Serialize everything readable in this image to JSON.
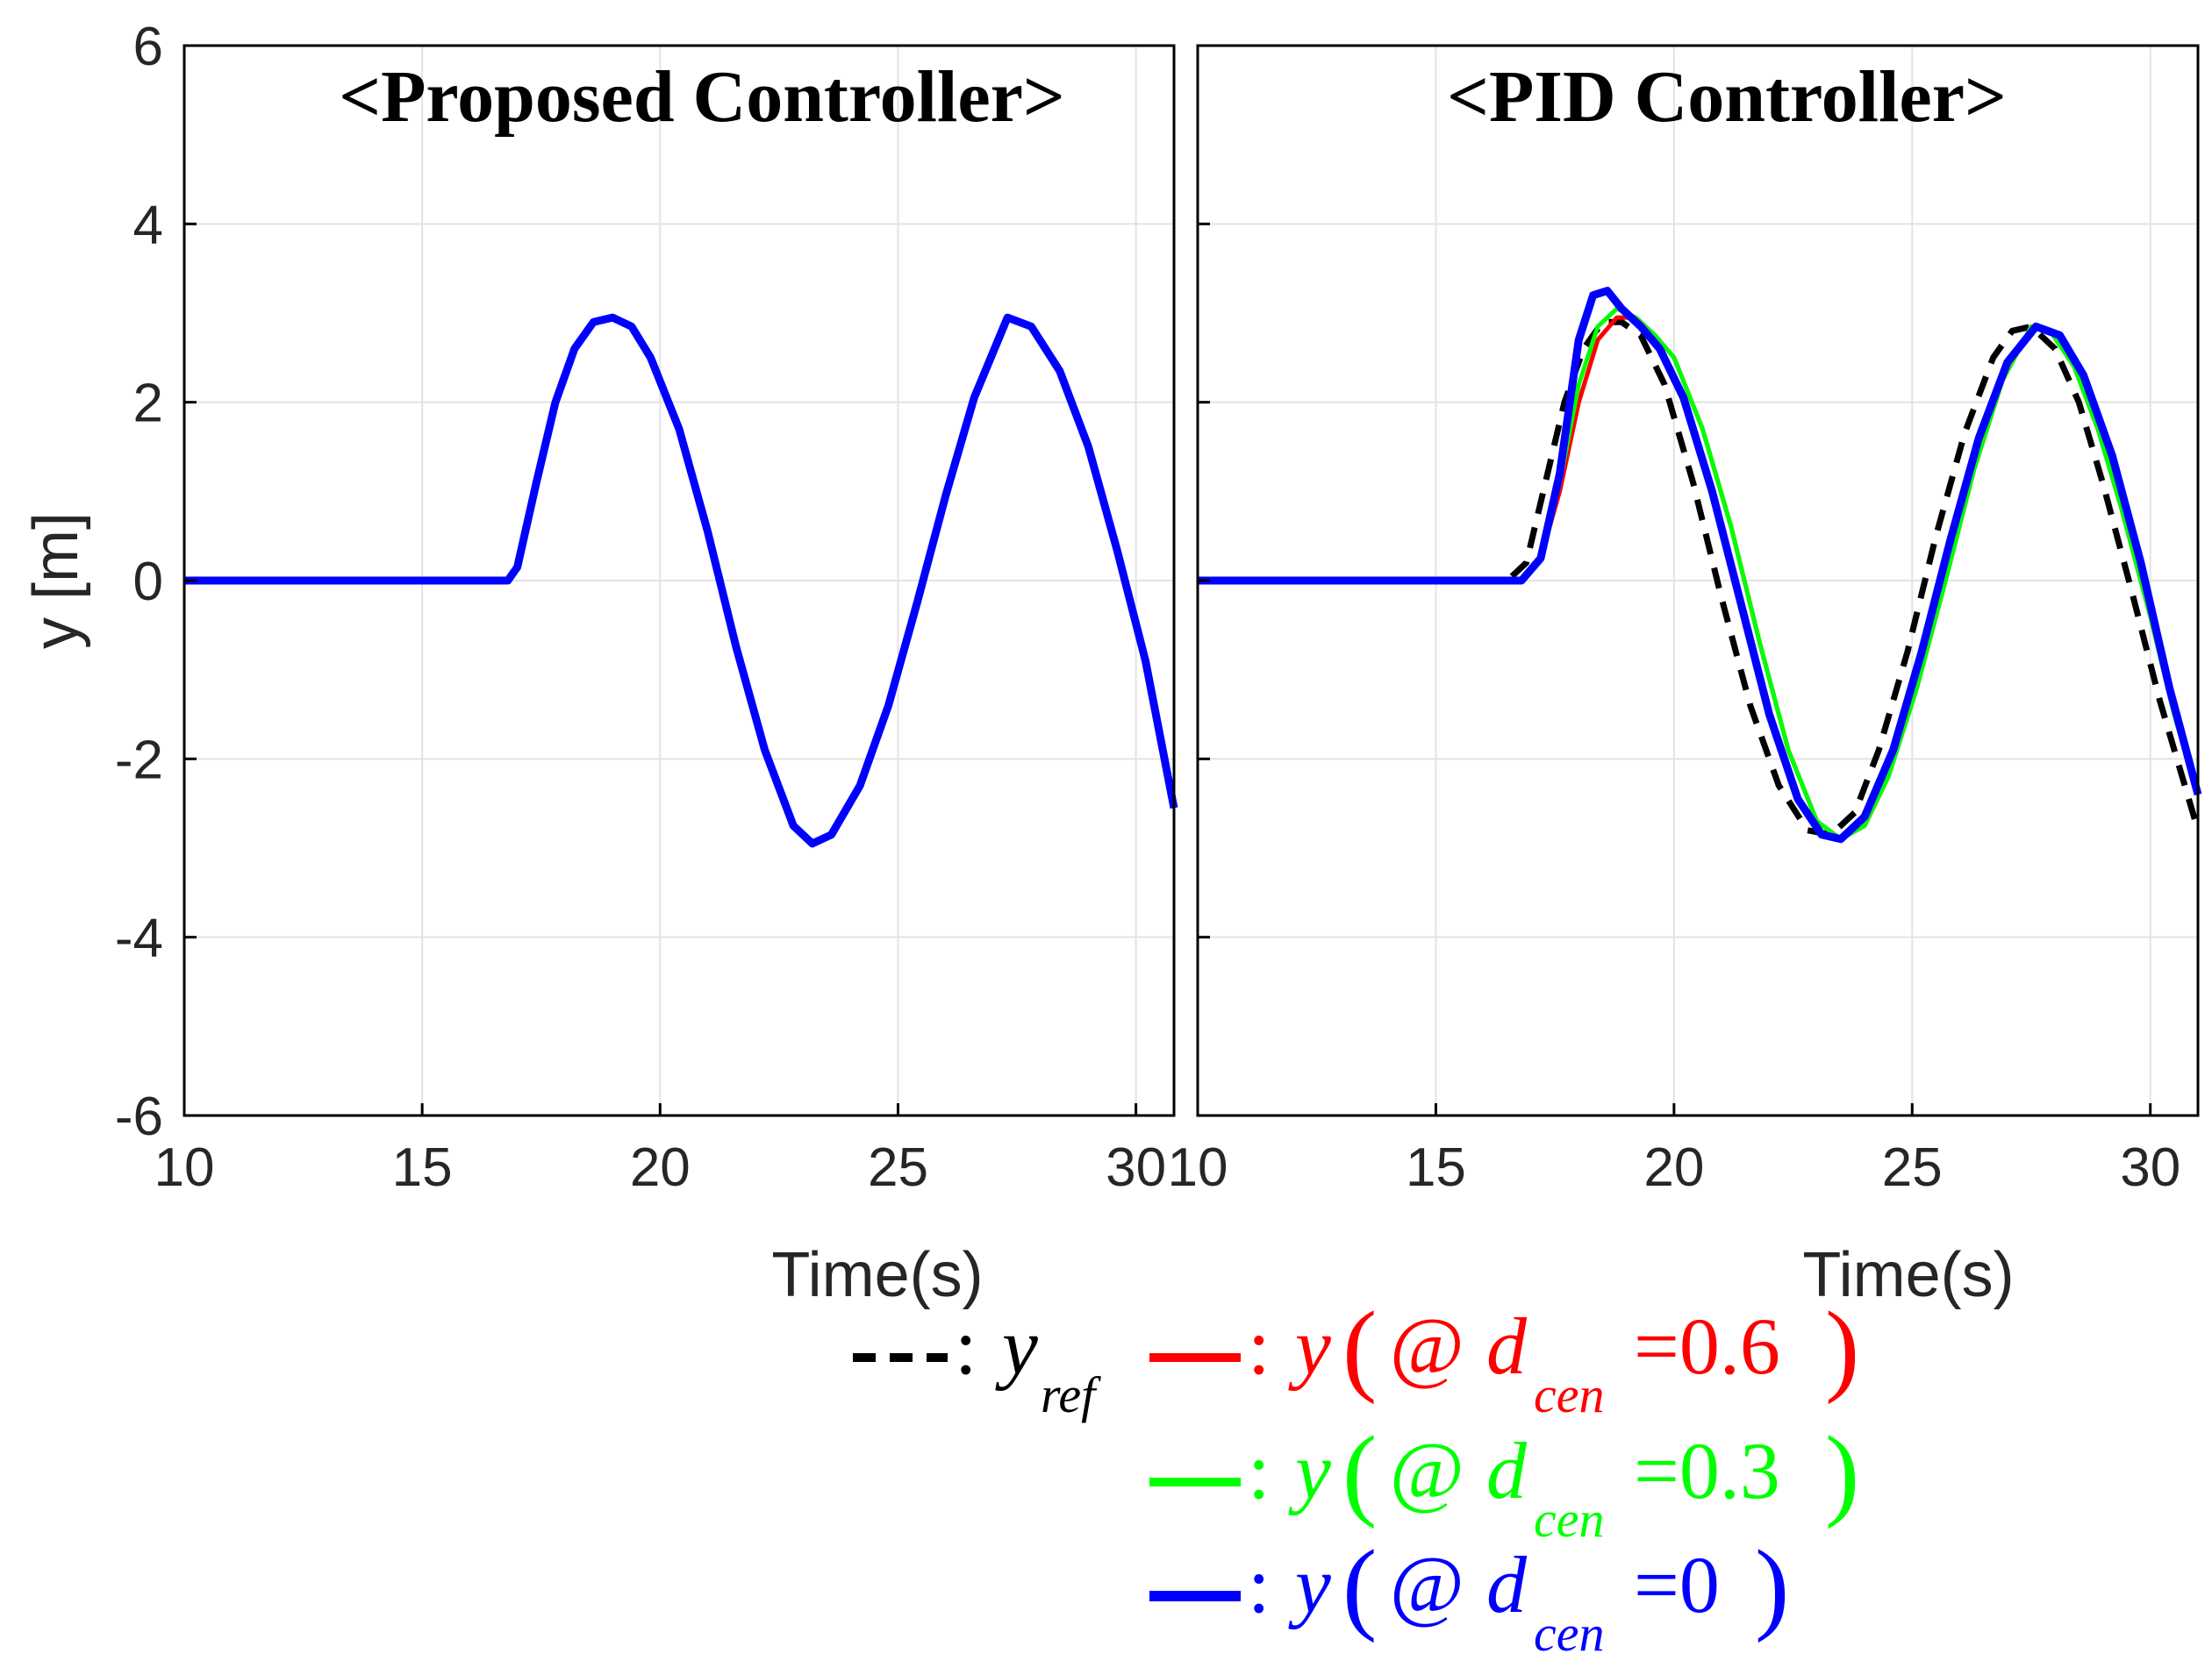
{
  "chart_data": [
    {
      "type": "line",
      "title": "<Proposed Controller>",
      "xlabel": "Time(s)",
      "ylabel": "y [m]",
      "xlim": [
        10,
        30.8
      ],
      "ylim": [
        -6,
        6
      ],
      "xticks": [
        10,
        15,
        20,
        25,
        30
      ],
      "xtick_labels": [
        "10",
        "15",
        "20",
        "25",
        "30"
      ],
      "yticks": [
        -6,
        -4,
        -2,
        0,
        2,
        4,
        6
      ],
      "ytick_labels": [
        "-6",
        "-4",
        "-2",
        "0",
        "2",
        "4",
        "6"
      ],
      "grid": true,
      "series": [
        {
          "key": "y_ref",
          "color": "#000000",
          "dash": "dashed",
          "width": 6,
          "x": [
            10,
            16.8,
            17.0,
            17.4,
            17.8,
            18.2,
            18.6,
            19.0,
            19.4,
            19.8,
            20.4,
            21.0,
            21.6,
            22.2,
            22.8,
            23.2,
            23.6,
            24.2,
            24.8,
            25.4,
            26.0,
            26.6,
            27.3,
            27.8,
            28.4,
            29.0,
            29.6,
            30.2,
            30.8
          ],
          "y": [
            0,
            0,
            0.15,
            1.1,
            2.0,
            2.6,
            2.9,
            2.95,
            2.85,
            2.5,
            1.7,
            0.55,
            -0.75,
            -1.9,
            -2.75,
            -2.95,
            -2.85,
            -2.3,
            -1.4,
            -0.25,
            0.95,
            2.05,
            2.95,
            2.85,
            2.35,
            1.5,
            0.35,
            -0.9,
            -2.55
          ]
        },
        {
          "key": "y_06",
          "color": "#ff0000",
          "width": 6,
          "x": [
            10,
            16.8,
            17.0,
            17.4,
            17.8,
            18.2,
            18.6,
            19.0,
            19.4,
            19.8,
            20.4,
            21.0,
            21.6,
            22.2,
            22.8,
            23.2,
            23.6,
            24.2,
            24.8,
            25.4,
            26.0,
            26.6,
            27.3,
            27.8,
            28.4,
            29.0,
            29.6,
            30.2,
            30.8
          ],
          "y": [
            0,
            0,
            0.15,
            1.1,
            2.0,
            2.6,
            2.9,
            2.95,
            2.85,
            2.5,
            1.7,
            0.55,
            -0.75,
            -1.9,
            -2.75,
            -2.95,
            -2.85,
            -2.3,
            -1.4,
            -0.25,
            0.95,
            2.05,
            2.95,
            2.85,
            2.35,
            1.5,
            0.35,
            -0.9,
            -2.55
          ]
        },
        {
          "key": "y_03",
          "color": "#00ff00",
          "width": 6,
          "x": [
            10,
            16.8,
            17.0,
            17.4,
            17.8,
            18.2,
            18.6,
            19.0,
            19.4,
            19.8,
            20.4,
            21.0,
            21.6,
            22.2,
            22.8,
            23.2,
            23.6,
            24.2,
            24.8,
            25.4,
            26.0,
            26.6,
            27.3,
            27.8,
            28.4,
            29.0,
            29.6,
            30.2,
            30.8
          ],
          "y": [
            0,
            0,
            0.15,
            1.1,
            2.0,
            2.6,
            2.9,
            2.95,
            2.85,
            2.5,
            1.7,
            0.55,
            -0.75,
            -1.9,
            -2.75,
            -2.95,
            -2.85,
            -2.3,
            -1.4,
            -0.25,
            0.95,
            2.05,
            2.95,
            2.85,
            2.35,
            1.5,
            0.35,
            -0.9,
            -2.55
          ]
        },
        {
          "key": "y_0",
          "color": "#0000ff",
          "width": 9,
          "x": [
            10,
            16.8,
            17.0,
            17.4,
            17.8,
            18.2,
            18.6,
            19.0,
            19.4,
            19.8,
            20.4,
            21.0,
            21.6,
            22.2,
            22.8,
            23.2,
            23.6,
            24.2,
            24.8,
            25.4,
            26.0,
            26.6,
            27.3,
            27.8,
            28.4,
            29.0,
            29.6,
            30.2,
            30.8
          ],
          "y": [
            0,
            0,
            0.15,
            1.1,
            2.0,
            2.6,
            2.9,
            2.95,
            2.85,
            2.5,
            1.7,
            0.55,
            -0.75,
            -1.9,
            -2.75,
            -2.95,
            -2.85,
            -2.3,
            -1.4,
            -0.25,
            0.95,
            2.05,
            2.95,
            2.85,
            2.35,
            1.5,
            0.35,
            -0.9,
            -2.55
          ]
        }
      ]
    },
    {
      "type": "line",
      "title": "<PID Controller>",
      "xlabel": "Time(s)",
      "ylabel": "",
      "xlim": [
        10,
        31
      ],
      "ylim": [
        -6,
        6
      ],
      "xticks": [
        10,
        15,
        20,
        25,
        30
      ],
      "xtick_labels": [
        "10",
        "15",
        "20",
        "25",
        "30"
      ],
      "grid": true,
      "series": [
        {
          "key": "y_ref",
          "color": "#000000",
          "dash": "dashed",
          "width": 7,
          "x": [
            10,
            16.5,
            16.9,
            17.3,
            17.7,
            18.1,
            18.5,
            18.9,
            19.3,
            19.8,
            20.4,
            21.0,
            21.6,
            22.2,
            22.8,
            23.3,
            23.8,
            24.3,
            24.9,
            25.5,
            26.1,
            26.7,
            27.1,
            27.5,
            28.0,
            28.5,
            29.0,
            29.6,
            30.2,
            31.0
          ],
          "y": [
            0,
            0,
            0.2,
            1.1,
            2.0,
            2.6,
            2.9,
            2.9,
            2.75,
            2.2,
            1.1,
            -0.2,
            -1.4,
            -2.3,
            -2.8,
            -2.85,
            -2.6,
            -1.9,
            -0.8,
            0.5,
            1.65,
            2.5,
            2.8,
            2.85,
            2.6,
            2.0,
            1.1,
            -0.1,
            -1.35,
            -2.8
          ]
        },
        {
          "key": "y_06",
          "color": "#ff0000",
          "width": 5,
          "x": [
            10,
            16.8,
            17.2,
            17.6,
            18.0,
            18.4,
            18.8,
            19.2,
            19.6,
            20.0,
            20.6,
            21.2,
            21.8,
            22.4,
            23.0,
            23.5,
            24.0,
            24.5,
            25.1,
            25.7,
            26.3,
            26.9,
            27.5,
            27.9,
            28.4,
            28.9,
            29.4,
            30.0,
            30.5,
            31.0
          ],
          "y": [
            0,
            0,
            0.25,
            1.0,
            2.0,
            2.7,
            2.95,
            2.95,
            2.75,
            2.5,
            1.7,
            0.6,
            -0.7,
            -1.9,
            -2.7,
            -2.9,
            -2.75,
            -2.2,
            -1.2,
            0.0,
            1.25,
            2.25,
            2.85,
            2.8,
            2.4,
            1.7,
            0.8,
            -0.4,
            -1.5,
            -2.4
          ]
        },
        {
          "key": "y_03",
          "color": "#00ff00",
          "width": 5,
          "x": [
            10,
            16.8,
            17.2,
            17.6,
            18.0,
            18.4,
            18.8,
            19.2,
            19.6,
            20.0,
            20.6,
            21.2,
            21.8,
            22.4,
            23.0,
            23.5,
            24.0,
            24.5,
            25.1,
            25.7,
            26.3,
            26.9,
            27.5,
            27.9,
            28.4,
            28.9,
            29.4,
            30.0,
            30.5,
            31.0
          ],
          "y": [
            0,
            0,
            0.25,
            1.1,
            2.2,
            2.85,
            3.05,
            2.95,
            2.75,
            2.5,
            1.7,
            0.6,
            -0.7,
            -1.9,
            -2.7,
            -2.9,
            -2.75,
            -2.2,
            -1.2,
            0.0,
            1.25,
            2.25,
            2.85,
            2.8,
            2.4,
            1.7,
            0.8,
            -0.4,
            -1.5,
            -2.4
          ]
        },
        {
          "key": "y_0",
          "color": "#0000ff",
          "width": 9,
          "x": [
            10,
            16.8,
            17.2,
            17.6,
            18.0,
            18.3,
            18.6,
            18.9,
            19.3,
            19.7,
            20.2,
            20.8,
            21.4,
            22.0,
            22.6,
            23.1,
            23.5,
            24.0,
            24.6,
            25.2,
            25.8,
            26.4,
            27.0,
            27.6,
            28.1,
            28.6,
            29.2,
            29.8,
            30.4,
            31.0
          ],
          "y": [
            0,
            0,
            0.25,
            1.2,
            2.7,
            3.2,
            3.25,
            3.05,
            2.85,
            2.6,
            2.05,
            1.0,
            -0.25,
            -1.5,
            -2.45,
            -2.85,
            -2.9,
            -2.65,
            -1.9,
            -0.8,
            0.45,
            1.6,
            2.45,
            2.85,
            2.75,
            2.3,
            1.4,
            0.2,
            -1.2,
            -2.4
          ]
        }
      ]
    }
  ],
  "legend": {
    "items": [
      {
        "key": "y_ref",
        "color": "#000000",
        "separator": ":",
        "symbol": "y",
        "sub": "ref",
        "open": "",
        "at": "",
        "d": "",
        "eq": "",
        "close": ""
      },
      {
        "key": "y_06",
        "color": "#ff0000",
        "separator": ":",
        "symbol": "y",
        "open": "(",
        "at": "@",
        "d": "d",
        "sub": "cen",
        "eq": "=0.6",
        "close": ")"
      },
      {
        "key": "y_03",
        "color": "#00ff00",
        "separator": ":",
        "symbol": "y",
        "open": "(",
        "at": "@",
        "d": "d",
        "sub": "cen",
        "eq": "=0.3",
        "close": ")"
      },
      {
        "key": "y_0",
        "color": "#0000ff",
        "separator": ":",
        "symbol": "y",
        "open": "(",
        "at": "@",
        "d": "d",
        "sub": "cen",
        "eq": "=0",
        "close": ")"
      }
    ]
  }
}
